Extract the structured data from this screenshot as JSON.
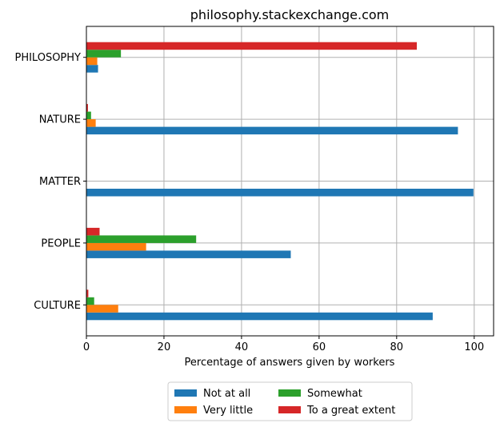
{
  "chart_data": {
    "type": "bar",
    "orientation": "horizontal",
    "title": "philosophy.stackexchange.com",
    "xlabel": "Percentage of answers given by workers",
    "ylabel": "",
    "xlim": [
      0,
      105
    ],
    "xticks": [
      0,
      20,
      40,
      60,
      80,
      100
    ],
    "grid": true,
    "legend_position": "bottom-center",
    "categories": [
      "CULTURE",
      "PEOPLE",
      "MATTER",
      "NATURE",
      "PHILOSOPHY"
    ],
    "series": [
      {
        "name": "Not at all",
        "color": "#1f77b4",
        "values": [
          89.3,
          52.7,
          99.8,
          95.8,
          3.0
        ]
      },
      {
        "name": "Very little",
        "color": "#ff7f0e",
        "values": [
          8.2,
          15.4,
          0.0,
          2.4,
          2.8
        ]
      },
      {
        "name": "Somewhat",
        "color": "#2ca02c",
        "values": [
          2.0,
          28.3,
          0.0,
          1.2,
          8.9
        ]
      },
      {
        "name": "To a great extent",
        "color": "#d62728",
        "values": [
          0.5,
          3.4,
          0.0,
          0.4,
          85.2
        ]
      }
    ]
  }
}
